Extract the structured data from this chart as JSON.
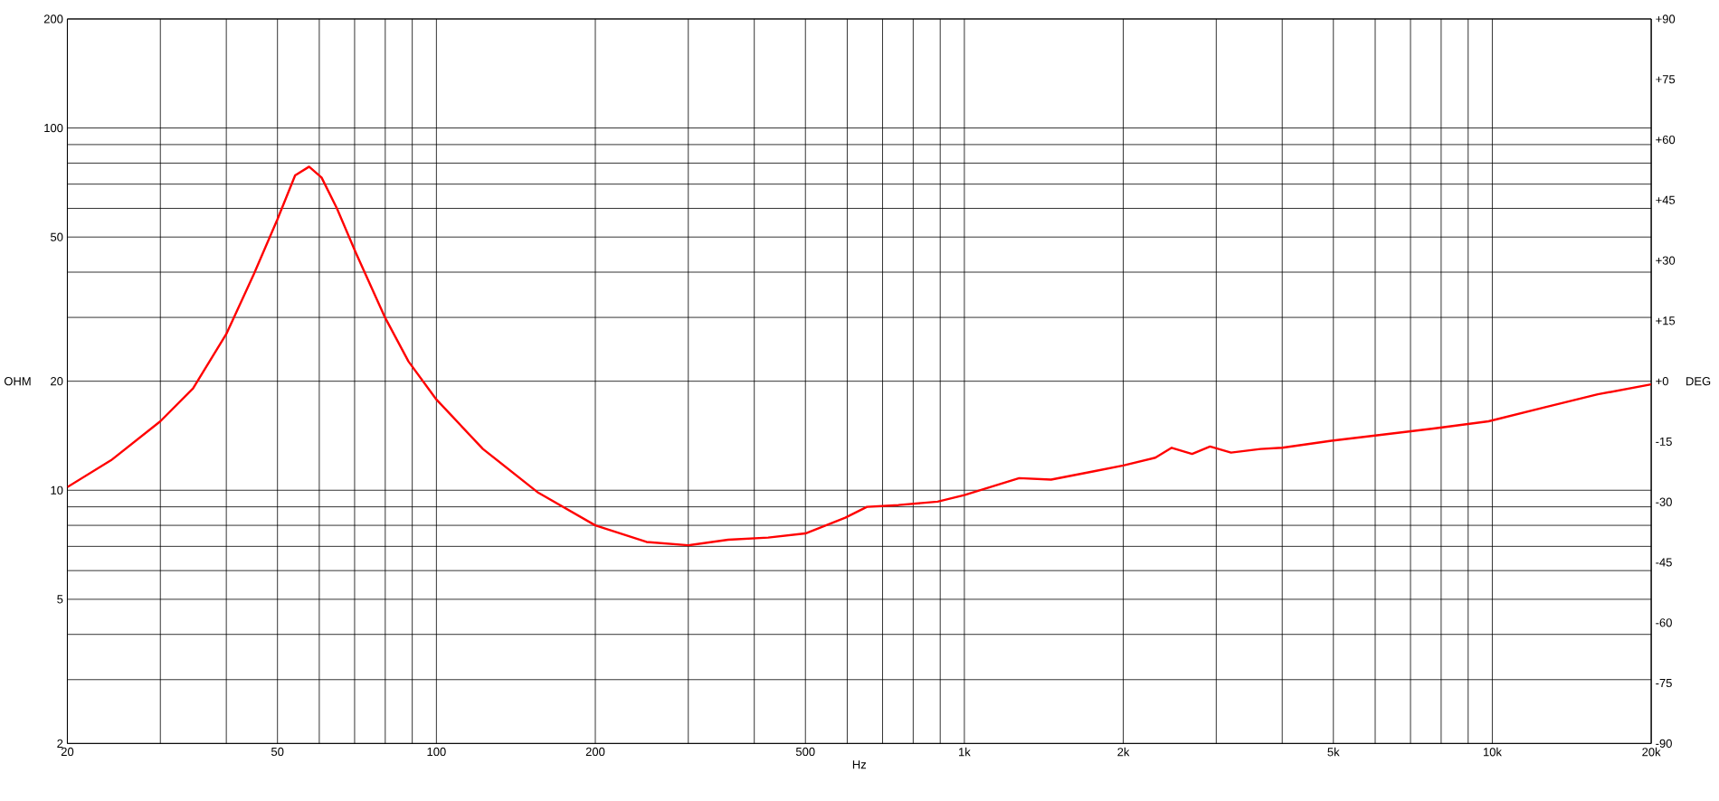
{
  "chart_data": {
    "type": "line",
    "xlabel": "Hz",
    "ylabel": "OHM",
    "y2label": "DEG",
    "log": "xy",
    "grid": true,
    "xlim": [
      20,
      20000
    ],
    "ylim": [
      2,
      200
    ],
    "y2lim": [
      -90,
      90
    ],
    "xticks": [
      20,
      {
        "value": 30,
        "label": null
      },
      {
        "value": 40,
        "label": null
      },
      50,
      {
        "value": 60,
        "label": null
      },
      {
        "value": 70,
        "label": null
      },
      {
        "value": 80,
        "label": null
      },
      {
        "value": 90,
        "label": null
      },
      100,
      200,
      {
        "value": 300,
        "label": null
      },
      {
        "value": 400,
        "label": null
      },
      500,
      {
        "value": 600,
        "label": null
      },
      {
        "value": 700,
        "label": null
      },
      {
        "value": 800,
        "label": null
      },
      {
        "value": 900,
        "label": null
      },
      {
        "value": 1000,
        "label": "1k"
      },
      {
        "value": 2000,
        "label": "2k"
      },
      {
        "value": 3000,
        "label": null
      },
      {
        "value": 4000,
        "label": null
      },
      {
        "value": 5000,
        "label": "5k"
      },
      {
        "value": 6000,
        "label": null
      },
      {
        "value": 7000,
        "label": null
      },
      {
        "value": 8000,
        "label": null
      },
      {
        "value": 9000,
        "label": null
      },
      {
        "value": 10000,
        "label": "10k"
      },
      {
        "value": 20000,
        "label": "20k"
      }
    ],
    "yticks": [
      2,
      {
        "value": 3,
        "label": null
      },
      {
        "value": 4,
        "label": null
      },
      5,
      {
        "value": 6,
        "label": null
      },
      {
        "value": 7,
        "label": null
      },
      {
        "value": 8,
        "label": null
      },
      {
        "value": 9,
        "label": null
      },
      10,
      20,
      {
        "value": 30,
        "label": null
      },
      {
        "value": 40,
        "label": null
      },
      50,
      {
        "value": 60,
        "label": null
      },
      {
        "value": 70,
        "label": null
      },
      {
        "value": 80,
        "label": null
      },
      {
        "value": 90,
        "label": null
      },
      100,
      200
    ],
    "y2ticks": [
      -90,
      -75,
      -60,
      -45,
      -30,
      -15,
      {
        "value": 0,
        "label": "+0"
      },
      {
        "value": 15,
        "label": "+15"
      },
      {
        "value": 30,
        "label": "+30"
      },
      {
        "value": 45,
        "label": "+45"
      },
      {
        "value": 60,
        "label": "+60"
      },
      {
        "value": 75,
        "label": "+75"
      },
      {
        "value": 90,
        "label": "+90"
      }
    ],
    "x": [
      20,
      24.2,
      30,
      34.6,
      40,
      45.1,
      50,
      54,
      57.4,
      60.6,
      64.8,
      70.3,
      80,
      88.5,
      100,
      122.5,
      156,
      200,
      250,
      300,
      357,
      425,
      500,
      595,
      654,
      750,
      890,
      1000,
      1270,
      1460,
      1770,
      2000,
      2300,
      2470,
      2700,
      2920,
      3200,
      3640,
      4000,
      4960,
      6100,
      7740,
      9840,
      12500,
      15840,
      20000
    ],
    "series": [
      {
        "color": "#ff0000",
        "values": [
          10.2,
          12.1,
          15.5,
          19.1,
          27.0,
          39.5,
          56,
          74,
          78.2,
          73,
          60,
          45.4,
          29.9,
          22.7,
          17.8,
          13.0,
          9.84,
          8.0,
          7.2,
          7.05,
          7.3,
          7.4,
          7.6,
          8.4,
          9.0,
          9.1,
          9.3,
          9.7,
          10.8,
          10.7,
          11.3,
          11.7,
          12.3,
          13.1,
          12.6,
          13.2,
          12.7,
          13.0,
          13.1,
          13.7,
          14.2,
          14.8,
          15.5,
          16.9,
          18.4,
          19.6
        ]
      }
    ]
  }
}
